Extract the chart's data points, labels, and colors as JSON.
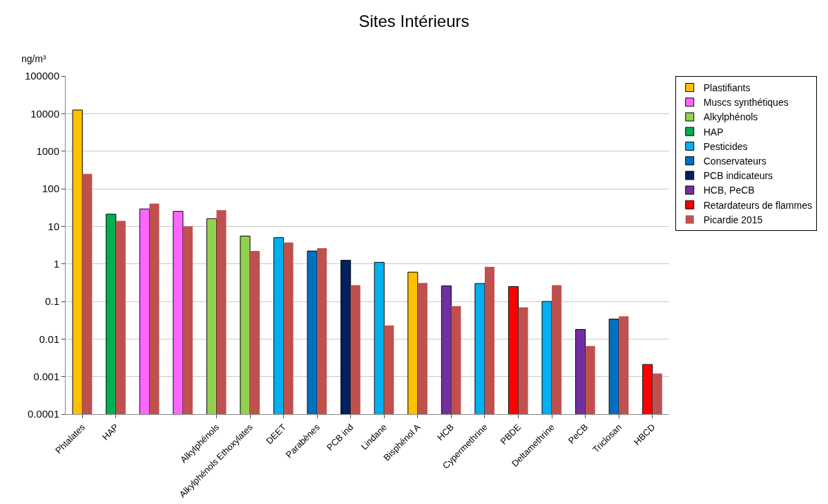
{
  "chart_data": {
    "type": "bar",
    "title": "Sites Intérieurs",
    "ylabel": "ng/m³",
    "categories": [
      "Phtalates",
      "HAP",
      null,
      null,
      "Alkylphénols",
      "Alkylphénols Ethoxylates",
      "DEET",
      "Parabènes",
      "PCB ind",
      "Lindane",
      "Bisphénol A",
      "HCB",
      "Cypermethrine",
      "PBDE",
      "Deltamethrine",
      "PeCB",
      "Triclosan",
      "HBCD"
    ],
    "series": [
      {
        "name": "Plastifiants",
        "color": "#ffc000",
        "values": [
          12500,
          null,
          null,
          null,
          null,
          null,
          null,
          null,
          null,
          null,
          0.6,
          null,
          null,
          null,
          null,
          null,
          null,
          null
        ]
      },
      {
        "name": "Muscs synthétiques",
        "color": "#ff66ff",
        "values": [
          null,
          null,
          29,
          25,
          null,
          null,
          null,
          null,
          null,
          null,
          null,
          null,
          null,
          null,
          null,
          null,
          null,
          null
        ]
      },
      {
        "name": "Alkylphénols",
        "color": "#92d050",
        "values": [
          null,
          null,
          null,
          null,
          16,
          5.5,
          null,
          null,
          null,
          null,
          null,
          null,
          null,
          null,
          null,
          null,
          null,
          null
        ]
      },
      {
        "name": "HAP",
        "color": "#00b050",
        "values": [
          null,
          21,
          null,
          null,
          null,
          null,
          null,
          null,
          null,
          null,
          null,
          null,
          null,
          null,
          null,
          null,
          null,
          null
        ]
      },
      {
        "name": "Pesticides",
        "color": "#00b0f0",
        "values": [
          null,
          null,
          null,
          null,
          null,
          null,
          5,
          null,
          null,
          1.1,
          null,
          null,
          0.3,
          null,
          0.1,
          null,
          null,
          null
        ]
      },
      {
        "name": "Conservateurs",
        "color": "#0070c0",
        "values": [
          null,
          null,
          null,
          null,
          null,
          null,
          null,
          2.2,
          null,
          null,
          null,
          null,
          null,
          null,
          null,
          null,
          0.034,
          null
        ]
      },
      {
        "name": "PCB indicateurs",
        "color": "#002060",
        "values": [
          null,
          null,
          null,
          null,
          null,
          null,
          null,
          null,
          1.25,
          null,
          null,
          null,
          null,
          null,
          null,
          null,
          null,
          null
        ]
      },
      {
        "name": "HCB, PeCB",
        "color": "#7030a0",
        "values": [
          null,
          null,
          null,
          null,
          null,
          null,
          null,
          null,
          null,
          null,
          null,
          0.26,
          null,
          null,
          null,
          0.018,
          null,
          null
        ]
      },
      {
        "name": "Retardateurs de flammes",
        "color": "#ff0000",
        "values": [
          null,
          null,
          null,
          null,
          null,
          null,
          null,
          null,
          null,
          null,
          null,
          null,
          null,
          0.25,
          null,
          null,
          null,
          0.0021
        ]
      },
      {
        "name": "Picardie 2015",
        "color": "#c0504d",
        "values": [
          250,
          14,
          40,
          10,
          27,
          2.2,
          3.7,
          2.6,
          0.27,
          0.023,
          0.31,
          0.075,
          0.83,
          0.07,
          0.27,
          0.0065,
          0.04,
          0.0012
        ]
      }
    ],
    "log": "y",
    "ylim": [
      0.0001,
      100000
    ],
    "yticks": [
      0.0001,
      0.001,
      0.01,
      0.1,
      1,
      10,
      100,
      1000,
      10000,
      100000
    ],
    "grid": "y",
    "legend": "top right"
  }
}
